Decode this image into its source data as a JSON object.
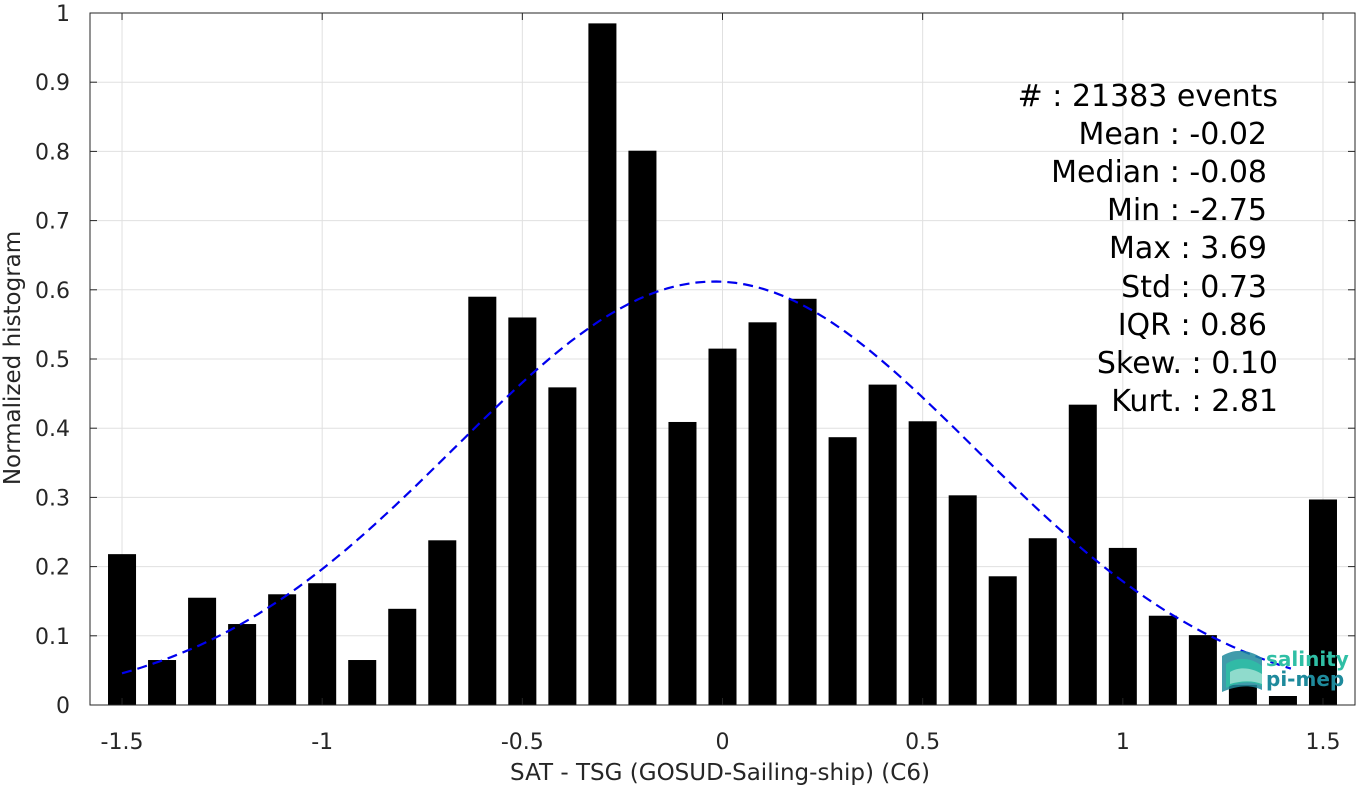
{
  "chart_data": {
    "type": "bar",
    "xlabel": "SAT - TSG (GOSUD-Sailing-ship) (C6)",
    "ylabel": "Normalized histogram",
    "xlim": [
      -1.58,
      1.58
    ],
    "ylim": [
      0,
      1
    ],
    "grid": true,
    "bar_width": 0.07,
    "x": [
      -1.5,
      -1.4,
      -1.3,
      -1.2,
      -1.1,
      -1.0,
      -0.9,
      -0.8,
      -0.7,
      -0.6,
      -0.5,
      -0.4,
      -0.3,
      -0.2,
      -0.1,
      0.0,
      0.1,
      0.2,
      0.3,
      0.4,
      0.5,
      0.6,
      0.7,
      0.8,
      0.9,
      1.0,
      1.1,
      1.2,
      1.3,
      1.4,
      1.5
    ],
    "values": [
      0.218,
      0.065,
      0.155,
      0.117,
      0.16,
      0.176,
      0.065,
      0.139,
      0.238,
      0.59,
      0.56,
      0.459,
      0.985,
      0.801,
      0.409,
      0.515,
      0.553,
      0.587,
      0.387,
      0.463,
      0.41,
      0.303,
      0.186,
      0.241,
      0.434,
      0.227,
      0.129,
      0.101,
      0.029,
      0.013,
      0.297
    ],
    "xticks": [
      -1.5,
      -1,
      -0.5,
      0,
      0.5,
      1,
      1.5
    ],
    "xtick_labels": [
      "-1.5",
      "-1",
      "-0.5",
      "0",
      "0.5",
      "1",
      "1.5"
    ],
    "yticks": [
      0,
      0.1,
      0.2,
      0.3,
      0.4,
      0.5,
      0.6,
      0.7,
      0.8,
      0.9,
      1
    ],
    "ytick_labels": [
      "0",
      "0.1",
      "0.2",
      "0.3",
      "0.4",
      "0.5",
      "0.6",
      "0.7",
      "0.8",
      "0.9",
      "1"
    ],
    "fit_curve": {
      "style": "dashed",
      "color": "#0000ee",
      "mean": -0.02,
      "std": 0.65,
      "peak": 0.612,
      "x_range": [
        -1.5,
        1.42
      ]
    },
    "bar_color": "#000000",
    "grid_color": "#e0e0e0",
    "stats": [
      "#  : 21383 events",
      "Mean : -0.02",
      "Median : -0.08",
      "Min : -2.75",
      "Max : 3.69",
      "Std : 0.73",
      "IQR : 0.86",
      "Skew. : 0.10",
      "Kurt. : 2.81"
    ]
  },
  "logo": {
    "line1": "salinity",
    "line2": "pi-mep",
    "color1": "#2fbfa5",
    "color2": "#1e8a9c"
  }
}
